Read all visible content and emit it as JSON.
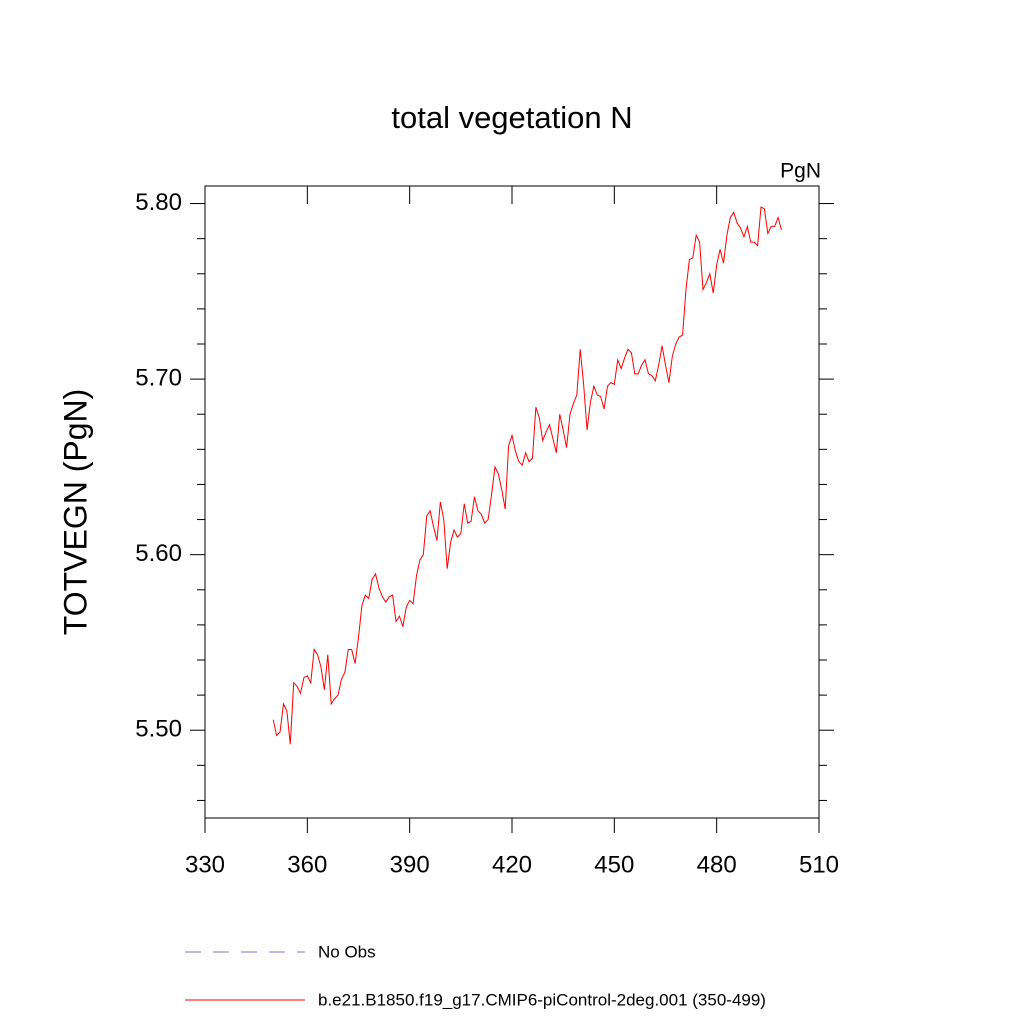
{
  "chart_data": {
    "type": "line",
    "title": "total vegetation N",
    "units_label": "PgN",
    "y_label": "TOTVEGN  (PgN)",
    "xlim": [
      330,
      510
    ],
    "xticks": [
      330,
      360,
      390,
      420,
      450,
      480,
      510
    ],
    "ylim": [
      5.45,
      5.81
    ],
    "yticks": [
      {
        "value": 5.5,
        "label": "5.50"
      },
      {
        "value": 5.6,
        "label": "5.60"
      },
      {
        "value": 5.7,
        "label": "5.70"
      },
      {
        "value": 5.8,
        "label": "5.80"
      }
    ],
    "minor_yticks": [
      5.46,
      5.48,
      5.52,
      5.54,
      5.56,
      5.58,
      5.62,
      5.64,
      5.66,
      5.68,
      5.72,
      5.74,
      5.76,
      5.78
    ],
    "x": [
      350,
      351,
      352,
      353,
      354,
      355,
      356,
      357,
      358,
      359,
      360,
      361,
      362,
      363,
      364,
      365,
      366,
      367,
      368,
      369,
      370,
      371,
      372,
      373,
      374,
      375,
      376,
      377,
      378,
      379,
      380,
      381,
      382,
      383,
      384,
      385,
      386,
      387,
      388,
      389,
      390,
      391,
      392,
      393,
      394,
      395,
      396,
      397,
      398,
      399,
      400,
      401,
      402,
      403,
      404,
      405,
      406,
      407,
      408,
      409,
      410,
      411,
      412,
      413,
      414,
      415,
      416,
      417,
      418,
      419,
      420,
      421,
      422,
      423,
      424,
      425,
      426,
      427,
      428,
      429,
      430,
      431,
      432,
      433,
      434,
      435,
      436,
      437,
      438,
      439,
      440,
      441,
      442,
      443,
      444,
      445,
      446,
      447,
      448,
      449,
      450,
      451,
      452,
      453,
      454,
      455,
      456,
      457,
      458,
      459,
      460,
      461,
      462,
      463,
      464,
      465,
      466,
      467,
      468,
      469,
      470,
      471,
      472,
      473,
      474,
      475,
      476,
      477,
      478,
      479,
      480,
      481,
      482,
      483,
      484,
      485,
      486,
      487,
      488,
      489,
      490,
      491,
      492,
      493,
      494,
      495,
      496,
      497,
      498,
      499
    ],
    "series": [
      {
        "name": "No Obs",
        "color": "#7b7bc8",
        "dashed": true,
        "values": [
          null,
          null,
          null,
          null,
          null,
          null,
          null,
          null,
          null,
          null,
          null,
          null,
          null,
          null,
          null,
          null,
          null,
          null,
          null,
          null,
          null,
          null,
          null,
          null,
          null,
          null,
          null,
          null,
          null,
          null,
          null,
          null,
          null,
          null,
          null,
          null,
          null,
          null,
          null,
          null,
          null,
          null,
          null,
          null,
          null,
          null,
          null,
          null,
          null,
          null,
          null,
          null,
          null,
          null,
          null,
          null,
          null,
          null,
          null,
          null,
          null,
          null,
          null,
          null,
          null,
          null,
          null,
          null,
          null,
          null,
          null,
          null,
          null,
          null,
          null,
          null,
          null,
          null,
          null,
          null,
          null,
          null,
          null,
          null,
          null,
          null,
          null,
          null,
          null,
          null,
          null,
          null,
          null,
          null,
          null,
          null,
          null,
          null,
          null,
          null,
          null,
          null,
          null,
          null,
          null,
          null,
          null,
          null,
          null,
          null,
          null,
          null,
          null,
          null,
          null,
          null,
          null,
          null,
          null,
          null,
          null,
          null,
          null,
          null,
          null,
          null,
          null,
          null,
          null,
          null,
          null,
          null,
          null,
          null,
          null,
          null,
          null,
          null,
          null,
          null,
          null,
          null,
          null,
          null,
          null,
          null,
          null,
          null,
          null,
          null
        ]
      },
      {
        "name": "b.e21.B1850.f19_g17.CMIP6-piControl-2deg.001 (350-499)",
        "color": "#ff0000",
        "dashed": false,
        "values": [
          5.506,
          5.497,
          5.499,
          5.515,
          5.511,
          5.492,
          5.527,
          5.525,
          5.521,
          5.53,
          5.531,
          5.527,
          5.546,
          5.543,
          5.536,
          5.523,
          5.543,
          5.515,
          5.518,
          5.52,
          5.529,
          5.533,
          5.546,
          5.546,
          5.538,
          5.553,
          5.571,
          5.577,
          5.575,
          5.586,
          5.589,
          5.581,
          5.576,
          5.573,
          5.576,
          5.577,
          5.562,
          5.565,
          5.559,
          5.57,
          5.574,
          5.572,
          5.588,
          5.597,
          5.6,
          5.622,
          5.625,
          5.616,
          5.608,
          5.63,
          5.62,
          5.592,
          5.607,
          5.614,
          5.61,
          5.612,
          5.629,
          5.618,
          5.619,
          5.633,
          5.625,
          5.623,
          5.618,
          5.62,
          5.634,
          5.65,
          5.646,
          5.637,
          5.626,
          5.662,
          5.668,
          5.659,
          5.653,
          5.651,
          5.658,
          5.653,
          5.655,
          5.684,
          5.678,
          5.665,
          5.67,
          5.674,
          5.666,
          5.658,
          5.68,
          5.671,
          5.661,
          5.68,
          5.686,
          5.691,
          5.717,
          5.697,
          5.671,
          5.687,
          5.696,
          5.691,
          5.69,
          5.683,
          5.696,
          5.698,
          5.697,
          5.711,
          5.706,
          5.712,
          5.717,
          5.715,
          5.703,
          5.703,
          5.708,
          5.711,
          5.703,
          5.702,
          5.699,
          5.708,
          5.719,
          5.708,
          5.698,
          5.713,
          5.72,
          5.724,
          5.725,
          5.751,
          5.768,
          5.769,
          5.782,
          5.778,
          5.751,
          5.755,
          5.76,
          5.749,
          5.765,
          5.774,
          5.766,
          5.782,
          5.792,
          5.795,
          5.789,
          5.786,
          5.781,
          5.787,
          5.778,
          5.778,
          5.776,
          5.798,
          5.797,
          5.783,
          5.787,
          5.787,
          5.792,
          5.785
        ]
      }
    ]
  }
}
